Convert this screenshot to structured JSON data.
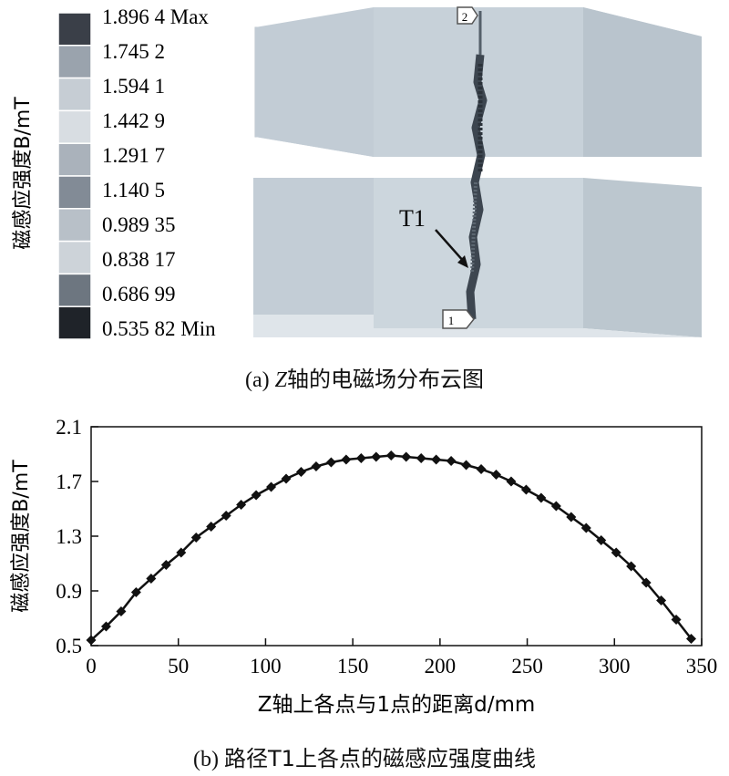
{
  "panel_a": {
    "legend_title": "磁感应强度B/mT",
    "legend_values": [
      "1.896 4 Max",
      "1.745 2",
      "1.594 1",
      "1.442 9",
      "1.291 7",
      "1.140 5",
      "0.989 35",
      "0.838 17",
      "0.686 99",
      "0.535 82 Min"
    ],
    "legend_colors": [
      "#3a3f48",
      "#9aa3ad",
      "#c6cdd4",
      "#d8dde2",
      "#aab2bb",
      "#828b96",
      "#b8c0c8",
      "#cdd3d9",
      "#6d7680",
      "#1f2329"
    ],
    "path_label": "T1",
    "point_start": "1",
    "point_end": "2",
    "caption_prefix": "(a) ",
    "caption_axis": "Z",
    "caption_rest": "轴的电磁场分布云图"
  },
  "chart_data": {
    "type": "line",
    "title": "",
    "ylabel": "磁感应强度B/mT",
    "xlabel": "Z轴上各点与1点的距离d/mm",
    "xlim": [
      0,
      350
    ],
    "ylim": [
      0.5,
      2.1
    ],
    "xticks": [
      0,
      50,
      100,
      150,
      200,
      250,
      300,
      350
    ],
    "yticks": [
      0.5,
      0.9,
      1.3,
      1.7,
      2.1
    ],
    "grid": false,
    "legend": "none",
    "series": [
      {
        "marker": "diamond",
        "x": [
          0,
          8.6,
          17.2,
          25.8,
          34.4,
          43.0,
          51.6,
          60.2,
          68.8,
          77.4,
          86.0,
          94.6,
          103.2,
          111.8,
          120.4,
          129.0,
          137.6,
          146.2,
          154.8,
          163.4,
          172.0,
          180.6,
          189.2,
          197.8,
          206.4,
          215.0,
          223.6,
          232.2,
          240.8,
          249.4,
          258.0,
          266.6,
          275.2,
          283.8,
          292.4,
          301.0,
          309.6,
          318.2,
          326.8,
          335.4,
          344.0
        ],
        "y": [
          0.54,
          0.64,
          0.75,
          0.89,
          0.99,
          1.09,
          1.18,
          1.29,
          1.37,
          1.45,
          1.53,
          1.6,
          1.66,
          1.72,
          1.77,
          1.81,
          1.84,
          1.86,
          1.87,
          1.88,
          1.89,
          1.88,
          1.87,
          1.86,
          1.85,
          1.82,
          1.79,
          1.75,
          1.7,
          1.64,
          1.58,
          1.52,
          1.44,
          1.36,
          1.27,
          1.18,
          1.08,
          0.96,
          0.83,
          0.69,
          0.55
        ]
      }
    ]
  },
  "panel_b": {
    "caption_prefix": "(b) ",
    "caption_rest": "路径T1上各点的磁感应强度曲线"
  }
}
